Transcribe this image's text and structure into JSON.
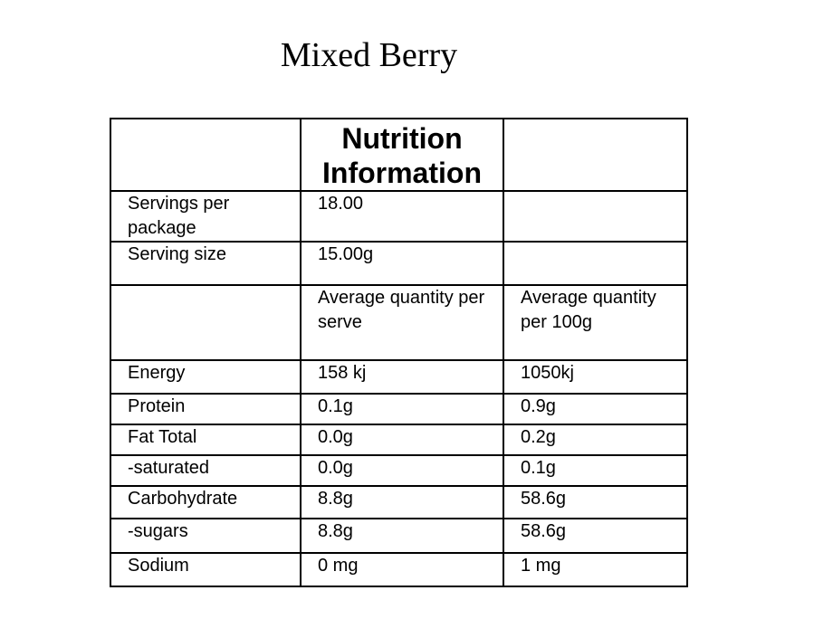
{
  "title": "Mixed Berry",
  "table": {
    "header": [
      "",
      "Nutrition Information",
      ""
    ],
    "info_rows": [
      {
        "label": "Servings per package",
        "serve": "18.00",
        "per100": ""
      },
      {
        "label": "Serving size",
        "serve": "15.00g",
        "per100": ""
      },
      {
        "label": "",
        "serve": "Average quantity per serve",
        "per100": "Average quantity per 100g"
      }
    ],
    "nutrient_rows": [
      {
        "label": "Energy",
        "serve": "158 kj",
        "per100": "1050kj"
      },
      {
        "label": "Protein",
        "serve": "0.1g",
        "per100": "0.9g"
      },
      {
        "label": "Fat Total",
        "serve": "0.0g",
        "per100": "0.2g"
      },
      {
        "label": "-saturated",
        "serve": "0.0g",
        "per100": "0.1g"
      },
      {
        "label": "Carbohydrate",
        "serve": "8.8g",
        "per100": "58.6g"
      },
      {
        "label": "-sugars",
        "serve": "8.8g",
        "per100": "58.6g"
      },
      {
        "label": "Sodium",
        "serve": "0 mg",
        "per100": "1 mg"
      }
    ]
  }
}
